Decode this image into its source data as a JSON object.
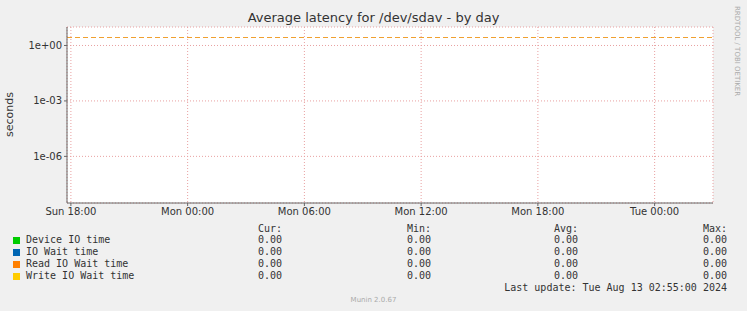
{
  "chart_data": {
    "type": "line",
    "title": "Average latency for /dev/sdav - by day",
    "y_label": "seconds",
    "side_text": "RRDTOOL / TOBI OETIKER",
    "footer": "Last update: Tue Aug 13 02:55:00 2024",
    "generator": "Munin 2.0.67",
    "log": "y",
    "grid": true,
    "x": [
      0,
      3,
      6,
      9,
      12,
      15,
      18,
      21,
      24,
      27,
      30,
      33
    ],
    "xlim": [
      -0.2,
      33
    ],
    "xticks": [
      {
        "value": 0,
        "label": "Sun 18:00"
      },
      {
        "value": 6,
        "label": "Mon 00:00"
      },
      {
        "value": 12,
        "label": "Mon 06:00"
      },
      {
        "value": 18,
        "label": "Mon 12:00"
      },
      {
        "value": 24,
        "label": "Mon 18:00"
      },
      {
        "value": 30,
        "label": "Tue 00:00"
      }
    ],
    "ylim": [
      3e-09,
      10
    ],
    "yticks": [
      {
        "value": 1e-06,
        "label": "1e-06"
      },
      {
        "value": 0.001,
        "label": "1e-03"
      },
      {
        "value": 1,
        "label": "1e+00"
      }
    ],
    "threshold": {
      "value": 2.7,
      "color": "#f0a030",
      "line_style": "dashed"
    },
    "summary_columns": [
      "Cur:",
      "Min:",
      "Avg:",
      "Max:"
    ],
    "series": [
      {
        "name": "Device IO time",
        "color": "#00cc00",
        "values": [
          0,
          0,
          0,
          0,
          0,
          0,
          0,
          0,
          0,
          0,
          0,
          0
        ],
        "summary": [
          "0.00",
          "0.00",
          "0.00",
          "0.00"
        ]
      },
      {
        "name": "IO Wait time",
        "color": "#0066b3",
        "values": [
          0,
          0,
          0,
          0,
          0,
          0,
          0,
          0,
          0,
          0,
          0,
          0
        ],
        "summary": [
          "0.00",
          "0.00",
          "0.00",
          "0.00"
        ]
      },
      {
        "name": "Read IO Wait time",
        "color": "#ff8000",
        "values": [
          0,
          0,
          0,
          0,
          0,
          0,
          0,
          0,
          0,
          0,
          0,
          0
        ],
        "summary": [
          "0.00",
          "0.00",
          "0.00",
          "0.00"
        ]
      },
      {
        "name": "Write IO Wait time",
        "color": "#ffcc00",
        "values": [
          0,
          0,
          0,
          0,
          0,
          0,
          0,
          0,
          0,
          0,
          0,
          0
        ],
        "summary": [
          "0.00",
          "0.00",
          "0.00",
          "0.00"
        ]
      }
    ]
  }
}
